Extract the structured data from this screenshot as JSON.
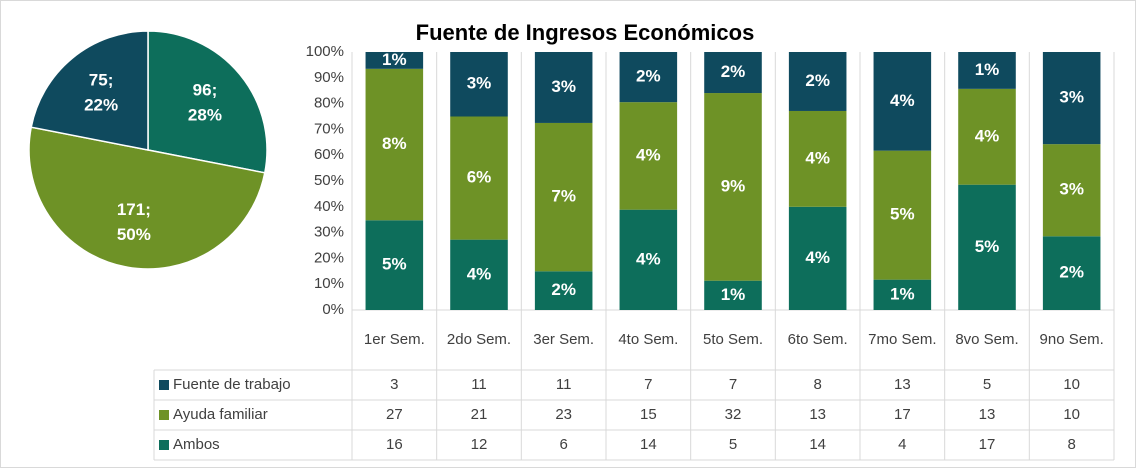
{
  "chart_data": [
    {
      "type": "pie",
      "values": [
        96,
        171,
        75
      ],
      "value_labels": [
        "96;",
        "171;",
        "75;"
      ],
      "percent_labels": [
        "28%",
        "50%",
        "22%"
      ],
      "colors": [
        "#0d6e5b",
        "#6e9226",
        "#0f4a5e"
      ]
    },
    {
      "type": "bar",
      "title": "Fuente de Ingresos Económicos",
      "categories": [
        "1er Sem.",
        "2do Sem.",
        "3er Sem.",
        "4to Sem.",
        "5to Sem.",
        "6to Sem.",
        "7mo Sem.",
        "8vo Sem.",
        "9no Sem."
      ],
      "series": [
        {
          "name": "Fuente de trabajo",
          "color": "#0f4a5e",
          "values": [
            3,
            11,
            11,
            7,
            7,
            8,
            13,
            5,
            10
          ],
          "value_labels": [
            "1%",
            "3%",
            "3%",
            "2%",
            "2%",
            "2%",
            "4%",
            "1%",
            "3%"
          ]
        },
        {
          "name": "Ayuda familiar",
          "color": "#6e9226",
          "values": [
            27,
            21,
            23,
            15,
            32,
            13,
            17,
            13,
            10
          ],
          "value_labels": [
            "8%",
            "6%",
            "7%",
            "4%",
            "9%",
            "4%",
            "5%",
            "4%",
            "3%"
          ]
        },
        {
          "name": "Ambos",
          "color": "#0d6e5b",
          "values": [
            16,
            12,
            6,
            14,
            5,
            14,
            4,
            17,
            8
          ],
          "value_labels": [
            "5%",
            "4%",
            "2%",
            "4%",
            "1%",
            "4%",
            "1%",
            "5%",
            "2%"
          ]
        }
      ],
      "ylim": [
        0,
        100
      ],
      "yticks": [
        {
          "value": 0,
          "label": "0%"
        },
        {
          "value": 10,
          "label": "10%"
        },
        {
          "value": 20,
          "label": "20%"
        },
        {
          "value": 30,
          "label": "30%"
        },
        {
          "value": 40,
          "label": "40%"
        },
        {
          "value": 50,
          "label": "50%"
        },
        {
          "value": 60,
          "label": "60%"
        },
        {
          "value": 70,
          "label": "70%"
        },
        {
          "value": 80,
          "label": "80%"
        },
        {
          "value": 90,
          "label": "90%"
        },
        {
          "value": 100,
          "label": "100%"
        }
      ],
      "stacked": "percent"
    }
  ]
}
